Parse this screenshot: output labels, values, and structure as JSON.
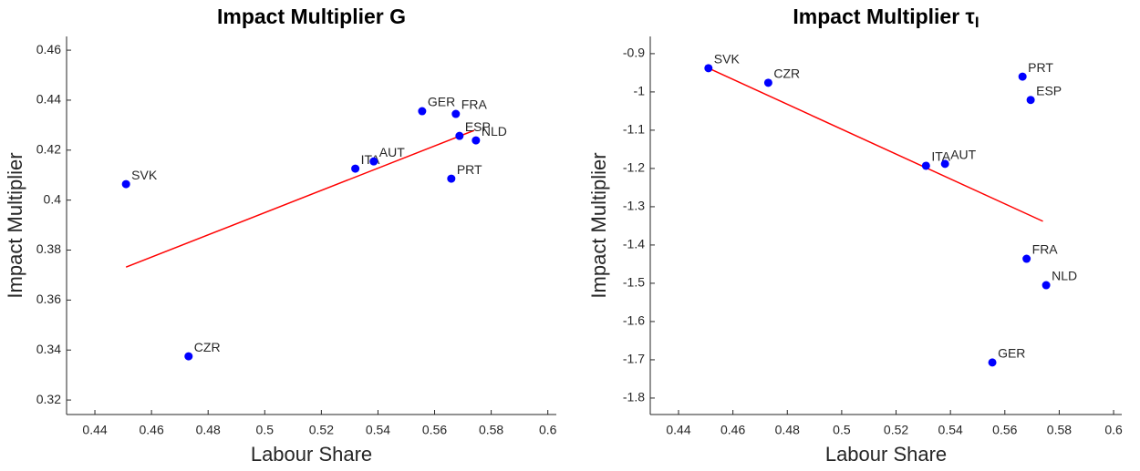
{
  "chart_data": [
    {
      "type": "scatter",
      "title": "Impact Multiplier G",
      "xlabel": "Labour Share",
      "ylabel": "Impact Multiplier",
      "labels": [
        "SVK",
        "CZR",
        "ITA",
        "AUT",
        "GER",
        "FRA",
        "ESP",
        "NLD",
        "PRT"
      ],
      "x": [
        0.451,
        0.4731,
        0.532,
        0.5385,
        0.5556,
        0.5675,
        0.5688,
        0.5746,
        0.5659
      ],
      "values": [
        0.4064,
        0.3375,
        0.4126,
        0.4155,
        0.4356,
        0.4345,
        0.4257,
        0.4239,
        0.4086
      ],
      "color": "#0000ff",
      "fit": {
        "x": [
          0.451,
          0.574
        ],
        "values": [
          0.3732,
          0.4279
        ],
        "color": "#ff0000"
      },
      "xlim": [
        0.43,
        0.603
      ],
      "ylim": [
        0.3142,
        0.4655
      ],
      "xticks": [
        0.44,
        0.46,
        0.48,
        0.5,
        0.52,
        0.54,
        0.56,
        0.58,
        0.6
      ],
      "yticks": [
        0.32,
        0.34,
        0.36,
        0.38,
        0.4,
        0.42,
        0.44,
        0.46
      ]
    },
    {
      "type": "scatter",
      "title": "Impact Multiplier τ",
      "title_subscript": "I",
      "xlabel": "Labour Share",
      "ylabel": "Impact Multiplier",
      "labels": [
        "SVK",
        "CZR",
        "ITA",
        "AUT",
        "PRT",
        "ESP",
        "FRA",
        "NLD",
        "GER"
      ],
      "x": [
        0.451,
        0.473,
        0.531,
        0.538,
        0.5665,
        0.5695,
        0.568,
        0.5752,
        0.5554
      ],
      "values": [
        -0.938,
        -0.976,
        -1.193,
        -1.188,
        -0.96,
        -1.021,
        -1.436,
        -1.505,
        -1.707
      ],
      "color": "#0000ff",
      "fit": {
        "x": [
          0.451,
          0.574
        ],
        "values": [
          -0.938,
          -1.338
        ],
        "color": "#ff0000"
      },
      "xlim": [
        0.4296,
        0.603
      ],
      "ylim": [
        -1.843,
        -0.855
      ],
      "xticks": [
        0.44,
        0.46,
        0.48,
        0.5,
        0.52,
        0.54,
        0.56,
        0.58,
        0.6
      ],
      "yticks": [
        -1.8,
        -1.7,
        -1.6,
        -1.5,
        -1.4,
        -1.3,
        -1.2,
        -1.1,
        -1,
        -0.9
      ]
    }
  ]
}
